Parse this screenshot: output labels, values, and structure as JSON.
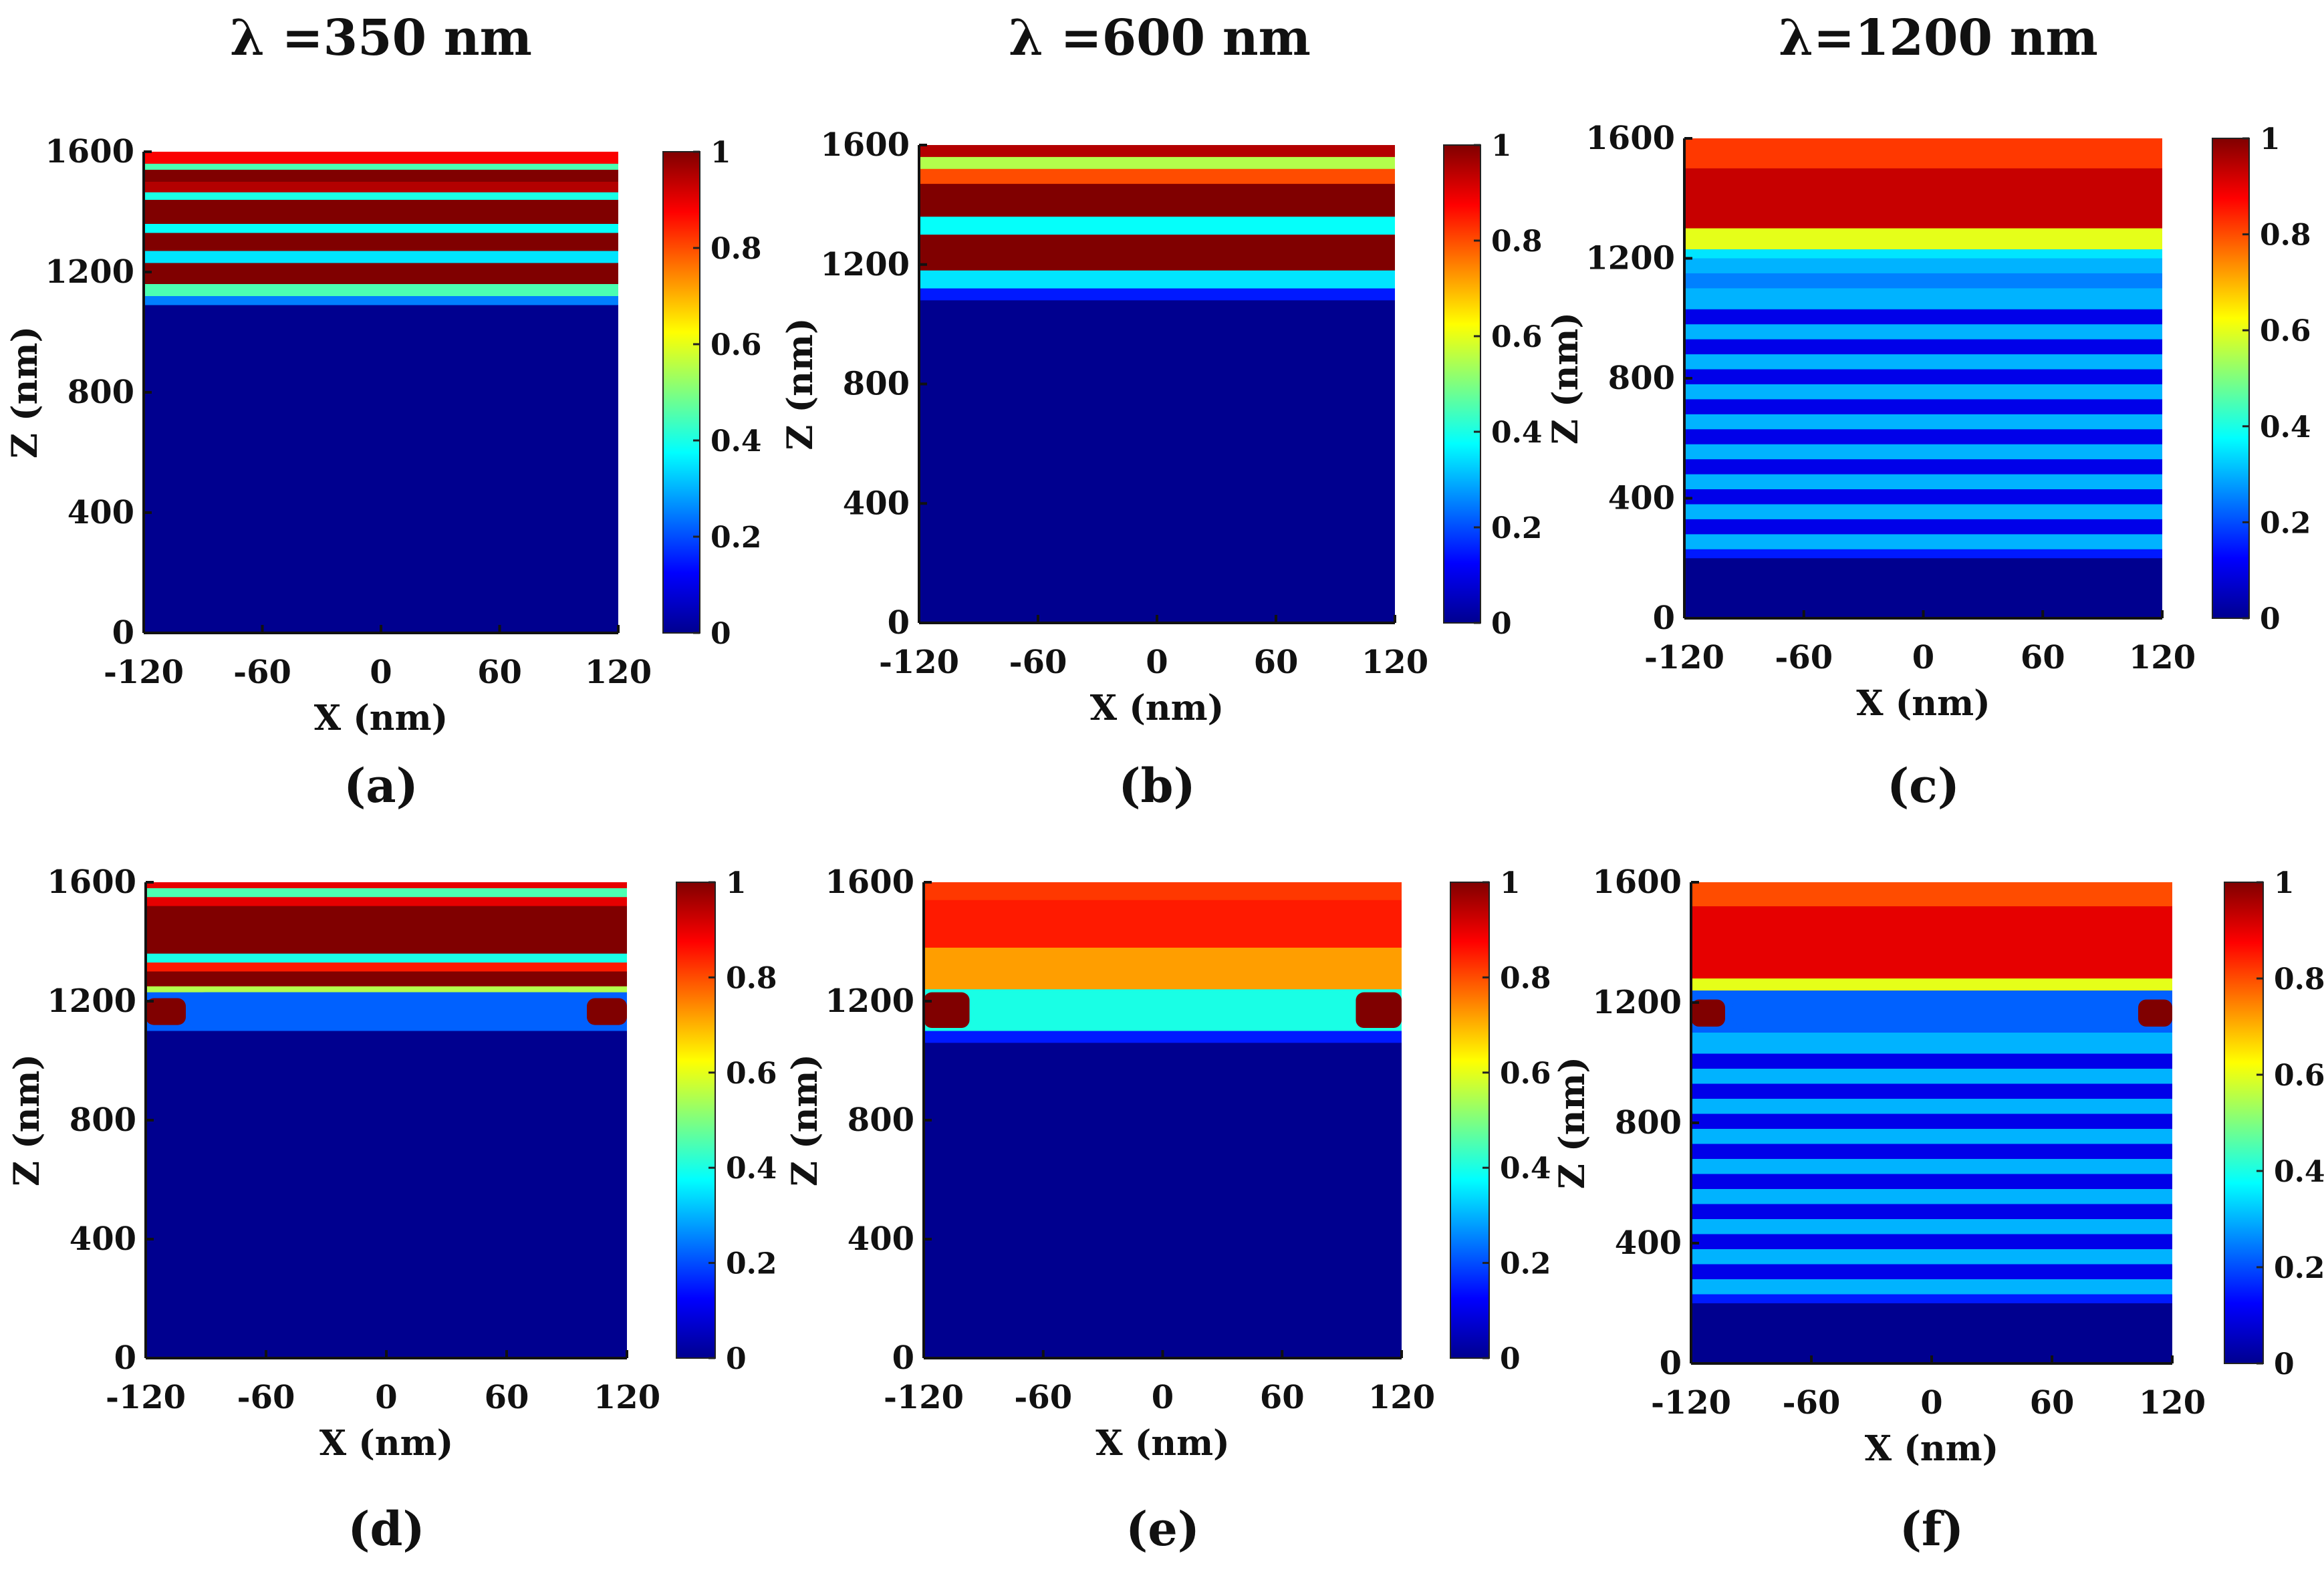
{
  "column_titles": [
    "λ =350 nm",
    "λ =600 nm",
    "λ=1200 nm"
  ],
  "chart_data": [
    {
      "type": "heatmap",
      "label": "(a)",
      "wavelength_nm": 350,
      "xlabel": "X (nm)",
      "ylabel": "Z (nm)",
      "xlim": [
        -120,
        120
      ],
      "ylim": [
        0,
        1600
      ],
      "xticks": [
        -120,
        -60,
        0,
        60,
        120
      ],
      "yticks": [
        0,
        400,
        800,
        1200,
        1600
      ],
      "colorbar": {
        "min": 0,
        "max": 1,
        "ticks": [
          0,
          0.2,
          0.4,
          0.6,
          0.8,
          1
        ],
        "colormap": "jet"
      },
      "field_profile": {
        "kind": "layered",
        "bands": [
          {
            "z": [
              1560,
              1600
            ],
            "value": 0.88
          },
          {
            "z": [
              1540,
              1560
            ],
            "value": 0.45
          },
          {
            "z": [
              1500,
              1540
            ],
            "value": 1.0
          },
          {
            "z": [
              1465,
              1500
            ],
            "value": 0.95
          },
          {
            "z": [
              1440,
              1465
            ],
            "value": 0.4
          },
          {
            "z": [
              1360,
              1440
            ],
            "value": 1.0
          },
          {
            "z": [
              1330,
              1360
            ],
            "value": 0.38
          },
          {
            "z": [
              1270,
              1330
            ],
            "value": 1.0
          },
          {
            "z": [
              1230,
              1270
            ],
            "value": 0.35
          },
          {
            "z": [
              1160,
              1230
            ],
            "value": 1.0
          },
          {
            "z": [
              1120,
              1160
            ],
            "value": 0.45
          },
          {
            "z": [
              1090,
              1120
            ],
            "value": 0.25
          },
          {
            "z": [
              0,
              1090
            ],
            "value": 0.0
          }
        ]
      }
    },
    {
      "type": "heatmap",
      "label": "(b)",
      "wavelength_nm": 600,
      "xlabel": "X (nm)",
      "ylabel": "Z (nm)",
      "xlim": [
        -120,
        120
      ],
      "ylim": [
        0,
        1600
      ],
      "xticks": [
        -120,
        -60,
        0,
        60,
        120
      ],
      "yticks": [
        0,
        400,
        800,
        1200,
        1600
      ],
      "colorbar": {
        "min": 0,
        "max": 1,
        "ticks": [
          0,
          0.2,
          0.4,
          0.6,
          0.8,
          1
        ],
        "colormap": "jet"
      },
      "field_profile": {
        "kind": "layered",
        "bands": [
          {
            "z": [
              1560,
              1600
            ],
            "value": 0.95
          },
          {
            "z": [
              1520,
              1560
            ],
            "value": 0.55
          },
          {
            "z": [
              1470,
              1520
            ],
            "value": 0.8
          },
          {
            "z": [
              1360,
              1470
            ],
            "value": 1.0
          },
          {
            "z": [
              1300,
              1360
            ],
            "value": 0.38
          },
          {
            "z": [
              1180,
              1300
            ],
            "value": 1.0
          },
          {
            "z": [
              1120,
              1180
            ],
            "value": 0.35
          },
          {
            "z": [
              1080,
              1120
            ],
            "value": 0.15
          },
          {
            "z": [
              0,
              1080
            ],
            "value": 0.0
          }
        ]
      }
    },
    {
      "type": "heatmap",
      "label": "(c)",
      "wavelength_nm": 1200,
      "xlabel": "X (nm)",
      "ylabel": "Z (nm)",
      "xlim": [
        -120,
        120
      ],
      "ylim": [
        0,
        1600
      ],
      "xticks": [
        -120,
        -60,
        0,
        60,
        120
      ],
      "yticks": [
        0,
        400,
        800,
        1200,
        1600
      ],
      "colorbar": {
        "min": 0,
        "max": 1,
        "ticks": [
          0,
          0.2,
          0.4,
          0.6,
          0.8,
          1
        ],
        "colormap": "jet"
      },
      "field_profile": {
        "kind": "layered",
        "bands": [
          {
            "z": [
              1500,
              1600
            ],
            "value": 0.82
          },
          {
            "z": [
              1300,
              1500
            ],
            "value": 0.93
          },
          {
            "z": [
              1230,
              1300
            ],
            "value": 0.6
          },
          {
            "z": [
              1200,
              1230
            ],
            "value": 0.35
          },
          {
            "z": [
              1150,
              1200
            ],
            "value": 0.3
          },
          {
            "z": [
              1100,
              1150
            ],
            "value": 0.25
          },
          {
            "z": [
              1030,
              1100
            ],
            "value": 0.3
          },
          {
            "z": [
              980,
              1030
            ],
            "value": 0.1
          },
          {
            "z": [
              930,
              980
            ],
            "value": 0.3
          },
          {
            "z": [
              880,
              930
            ],
            "value": 0.1
          },
          {
            "z": [
              830,
              880
            ],
            "value": 0.3
          },
          {
            "z": [
              780,
              830
            ],
            "value": 0.1
          },
          {
            "z": [
              730,
              780
            ],
            "value": 0.3
          },
          {
            "z": [
              680,
              730
            ],
            "value": 0.1
          },
          {
            "z": [
              630,
              680
            ],
            "value": 0.3
          },
          {
            "z": [
              580,
              630
            ],
            "value": 0.1
          },
          {
            "z": [
              530,
              580
            ],
            "value": 0.3
          },
          {
            "z": [
              480,
              530
            ],
            "value": 0.1
          },
          {
            "z": [
              430,
              480
            ],
            "value": 0.3
          },
          {
            "z": [
              380,
              430
            ],
            "value": 0.1
          },
          {
            "z": [
              330,
              380
            ],
            "value": 0.3
          },
          {
            "z": [
              280,
              330
            ],
            "value": 0.1
          },
          {
            "z": [
              230,
              280
            ],
            "value": 0.3
          },
          {
            "z": [
              200,
              230
            ],
            "value": 0.15
          },
          {
            "z": [
              0,
              200
            ],
            "value": 0.0
          }
        ]
      }
    },
    {
      "type": "heatmap",
      "label": "(d)",
      "wavelength_nm": 350,
      "xlabel": "X (nm)",
      "ylabel": "Z (nm)",
      "xlim": [
        -120,
        120
      ],
      "ylim": [
        0,
        1600
      ],
      "xticks": [
        -120,
        -60,
        0,
        60,
        120
      ],
      "yticks": [
        0,
        400,
        800,
        1200,
        1600
      ],
      "colorbar": {
        "min": 0,
        "max": 1,
        "ticks": [
          0,
          0.2,
          0.4,
          0.6,
          0.8,
          1
        ],
        "colormap": "jet"
      },
      "field_profile": {
        "kind": "structured",
        "bands": [
          {
            "z": [
              1580,
              1600
            ],
            "value": 0.9
          },
          {
            "z": [
              1550,
              1580
            ],
            "value": 0.45
          },
          {
            "z": [
              1520,
              1550
            ],
            "value": 0.9
          },
          {
            "z": [
              1360,
              1520
            ],
            "value": 1.0
          },
          {
            "z": [
              1330,
              1360
            ],
            "value": 0.4
          },
          {
            "z": [
              1300,
              1330
            ],
            "value": 0.85
          },
          {
            "z": [
              1250,
              1300
            ],
            "value": 1.0
          },
          {
            "z": [
              1230,
              1250
            ],
            "value": 0.55
          },
          {
            "z": [
              1100,
              1230
            ],
            "value": 0.22
          },
          {
            "z": [
              0,
              1100
            ],
            "value": 0.0
          }
        ],
        "particle": {
          "x": [
            -100,
            100
          ],
          "z": [
            1100,
            1230
          ],
          "value": 0.22
        },
        "edge_hotspots": [
          {
            "x": [
              -120,
              -100
            ],
            "z": [
              1120,
              1210
            ],
            "value": 1.0
          },
          {
            "x": [
              100,
              120
            ],
            "z": [
              1120,
              1210
            ],
            "value": 1.0
          }
        ]
      }
    },
    {
      "type": "heatmap",
      "label": "(e)",
      "wavelength_nm": 600,
      "xlabel": "X (nm)",
      "ylabel": "Z (nm)",
      "xlim": [
        -120,
        120
      ],
      "ylim": [
        0,
        1600
      ],
      "xticks": [
        -120,
        -60,
        0,
        60,
        120
      ],
      "yticks": [
        0,
        400,
        800,
        1200,
        1600
      ],
      "colorbar": {
        "min": 0,
        "max": 1,
        "ticks": [
          0,
          0.2,
          0.4,
          0.6,
          0.8,
          1
        ],
        "colormap": "jet"
      },
      "field_profile": {
        "kind": "structured",
        "bands": [
          {
            "z": [
              1540,
              1600
            ],
            "value": 0.82
          },
          {
            "z": [
              1380,
              1540
            ],
            "value": 0.85
          },
          {
            "z": [
              1240,
              1380
            ],
            "value": 0.72
          },
          {
            "z": [
              1100,
              1240
            ],
            "value": 0.4
          },
          {
            "z": [
              1060,
              1100
            ],
            "value": 0.15
          },
          {
            "z": [
              0,
              1060
            ],
            "value": 0.0
          }
        ],
        "particle": {
          "x": [
            -95,
            95
          ],
          "z": [
            1100,
            1230
          ],
          "value": 0.4
        },
        "edge_hotspots": [
          {
            "x": [
              -120,
              -97
            ],
            "z": [
              1110,
              1230
            ],
            "value": 1.0
          },
          {
            "x": [
              97,
              120
            ],
            "z": [
              1110,
              1230
            ],
            "value": 1.0
          }
        ]
      }
    },
    {
      "type": "heatmap",
      "label": "(f)",
      "wavelength_nm": 1200,
      "xlabel": "X (nm)",
      "ylabel": "Z (nm)",
      "xlim": [
        -120,
        120
      ],
      "ylim": [
        0,
        1600
      ],
      "xticks": [
        -120,
        -60,
        0,
        60,
        120
      ],
      "yticks": [
        0,
        400,
        800,
        1200,
        1600
      ],
      "colorbar": {
        "min": 0,
        "max": 1,
        "ticks": [
          0,
          0.2,
          0.4,
          0.6,
          0.8,
          1
        ],
        "colormap": "jet"
      },
      "field_profile": {
        "kind": "structured",
        "bands": [
          {
            "z": [
              1520,
              1600
            ],
            "value": 0.8
          },
          {
            "z": [
              1280,
              1520
            ],
            "value": 0.9
          },
          {
            "z": [
              1240,
              1280
            ],
            "value": 0.6
          },
          {
            "z": [
              1100,
              1240
            ],
            "value": 0.22
          },
          {
            "z": [
              1030,
              1100
            ],
            "value": 0.3
          },
          {
            "z": [
              980,
              1030
            ],
            "value": 0.1
          },
          {
            "z": [
              930,
              980
            ],
            "value": 0.3
          },
          {
            "z": [
              880,
              930
            ],
            "value": 0.1
          },
          {
            "z": [
              830,
              880
            ],
            "value": 0.3
          },
          {
            "z": [
              780,
              830
            ],
            "value": 0.1
          },
          {
            "z": [
              730,
              780
            ],
            "value": 0.3
          },
          {
            "z": [
              680,
              730
            ],
            "value": 0.1
          },
          {
            "z": [
              630,
              680
            ],
            "value": 0.3
          },
          {
            "z": [
              580,
              630
            ],
            "value": 0.1
          },
          {
            "z": [
              530,
              580
            ],
            "value": 0.3
          },
          {
            "z": [
              480,
              530
            ],
            "value": 0.1
          },
          {
            "z": [
              430,
              480
            ],
            "value": 0.3
          },
          {
            "z": [
              380,
              430
            ],
            "value": 0.1
          },
          {
            "z": [
              330,
              380
            ],
            "value": 0.3
          },
          {
            "z": [
              280,
              330
            ],
            "value": 0.1
          },
          {
            "z": [
              230,
              280
            ],
            "value": 0.3
          },
          {
            "z": [
              200,
              230
            ],
            "value": 0.15
          },
          {
            "z": [
              0,
              200
            ],
            "value": 0.0
          }
        ],
        "particle": {
          "x": [
            -100,
            100
          ],
          "z": [
            1110,
            1230
          ],
          "value": 0.22
        },
        "edge_hotspots": [
          {
            "x": [
              -120,
              -103
            ],
            "z": [
              1120,
              1210
            ],
            "value": 1.0
          },
          {
            "x": [
              103,
              120
            ],
            "z": [
              1120,
              1210
            ],
            "value": 1.0
          }
        ]
      }
    }
  ]
}
